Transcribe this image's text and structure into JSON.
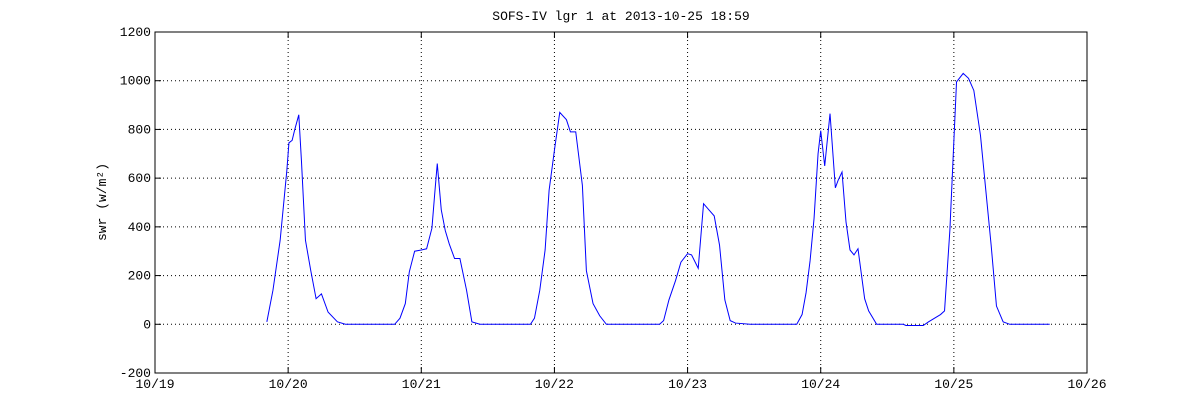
{
  "chart_data": {
    "type": "line",
    "title": "SOFS-IV lgr 1 at 2013-10-25 18:59",
    "ylabel": "swr (w/m²)",
    "color": "#0000ff",
    "grid": true,
    "xlim": [
      19,
      26
    ],
    "xticks": [
      {
        "value": 19,
        "label": "10/19"
      },
      {
        "value": 20,
        "label": "10/20"
      },
      {
        "value": 21,
        "label": "10/21"
      },
      {
        "value": 22,
        "label": "10/22"
      },
      {
        "value": 23,
        "label": "10/23"
      },
      {
        "value": 24,
        "label": "10/24"
      },
      {
        "value": 25,
        "label": "10/25"
      },
      {
        "value": 26,
        "label": "10/26"
      }
    ],
    "ylim": [
      -200,
      1200
    ],
    "yticks": [
      -200,
      0,
      200,
      400,
      600,
      800,
      1000,
      1200
    ],
    "x": [
      19.84,
      19.886,
      19.94,
      19.99,
      20.006,
      20.03,
      20.05,
      20.08,
      20.1,
      20.13,
      20.17,
      20.21,
      20.25,
      20.3,
      20.37,
      20.43,
      20.8,
      20.84,
      20.88,
      20.91,
      20.95,
      21.0,
      21.04,
      21.08,
      21.1,
      21.12,
      21.15,
      21.18,
      21.21,
      21.25,
      21.29,
      21.34,
      21.38,
      21.44,
      21.82,
      21.85,
      21.89,
      21.93,
      21.96,
      22.0,
      22.04,
      22.09,
      22.12,
      22.16,
      22.21,
      22.24,
      22.29,
      22.34,
      22.39,
      22.79,
      22.82,
      22.86,
      22.91,
      22.95,
      23.0,
      23.03,
      23.08,
      23.12,
      23.16,
      23.2,
      23.24,
      23.28,
      23.32,
      23.36,
      23.47,
      23.82,
      23.86,
      23.89,
      23.92,
      23.95,
      23.98,
      24.0,
      24.03,
      24.07,
      24.11,
      24.13,
      24.16,
      24.19,
      24.22,
      24.25,
      24.28,
      24.33,
      24.36,
      24.42,
      24.62,
      24.64,
      24.77,
      24.81,
      24.9,
      24.93,
      24.97,
      24.99,
      25.02,
      25.07,
      25.11,
      25.15,
      25.2,
      25.24,
      25.28,
      25.32,
      25.37,
      25.42,
      25.72
    ],
    "values": [
      10,
      140,
      345,
      630,
      745,
      755,
      800,
      860,
      670,
      345,
      220,
      105,
      125,
      50,
      10,
      0,
      0,
      25,
      85,
      215,
      300,
      305,
      310,
      395,
      530,
      660,
      470,
      385,
      330,
      270,
      270,
      140,
      10,
      0,
      0,
      25,
      140,
      305,
      550,
      715,
      870,
      840,
      790,
      790,
      570,
      220,
      85,
      35,
      0,
      0,
      15,
      100,
      180,
      255,
      290,
      285,
      230,
      495,
      470,
      445,
      325,
      100,
      15,
      5,
      0,
      0,
      40,
      130,
      260,
      435,
      700,
      795,
      650,
      865,
      560,
      590,
      625,
      420,
      305,
      285,
      310,
      105,
      55,
      0,
      0,
      -5,
      -5,
      10,
      40,
      55,
      385,
      630,
      995,
      1030,
      1010,
      960,
      775,
      550,
      325,
      75,
      10,
      0,
      0
    ]
  }
}
